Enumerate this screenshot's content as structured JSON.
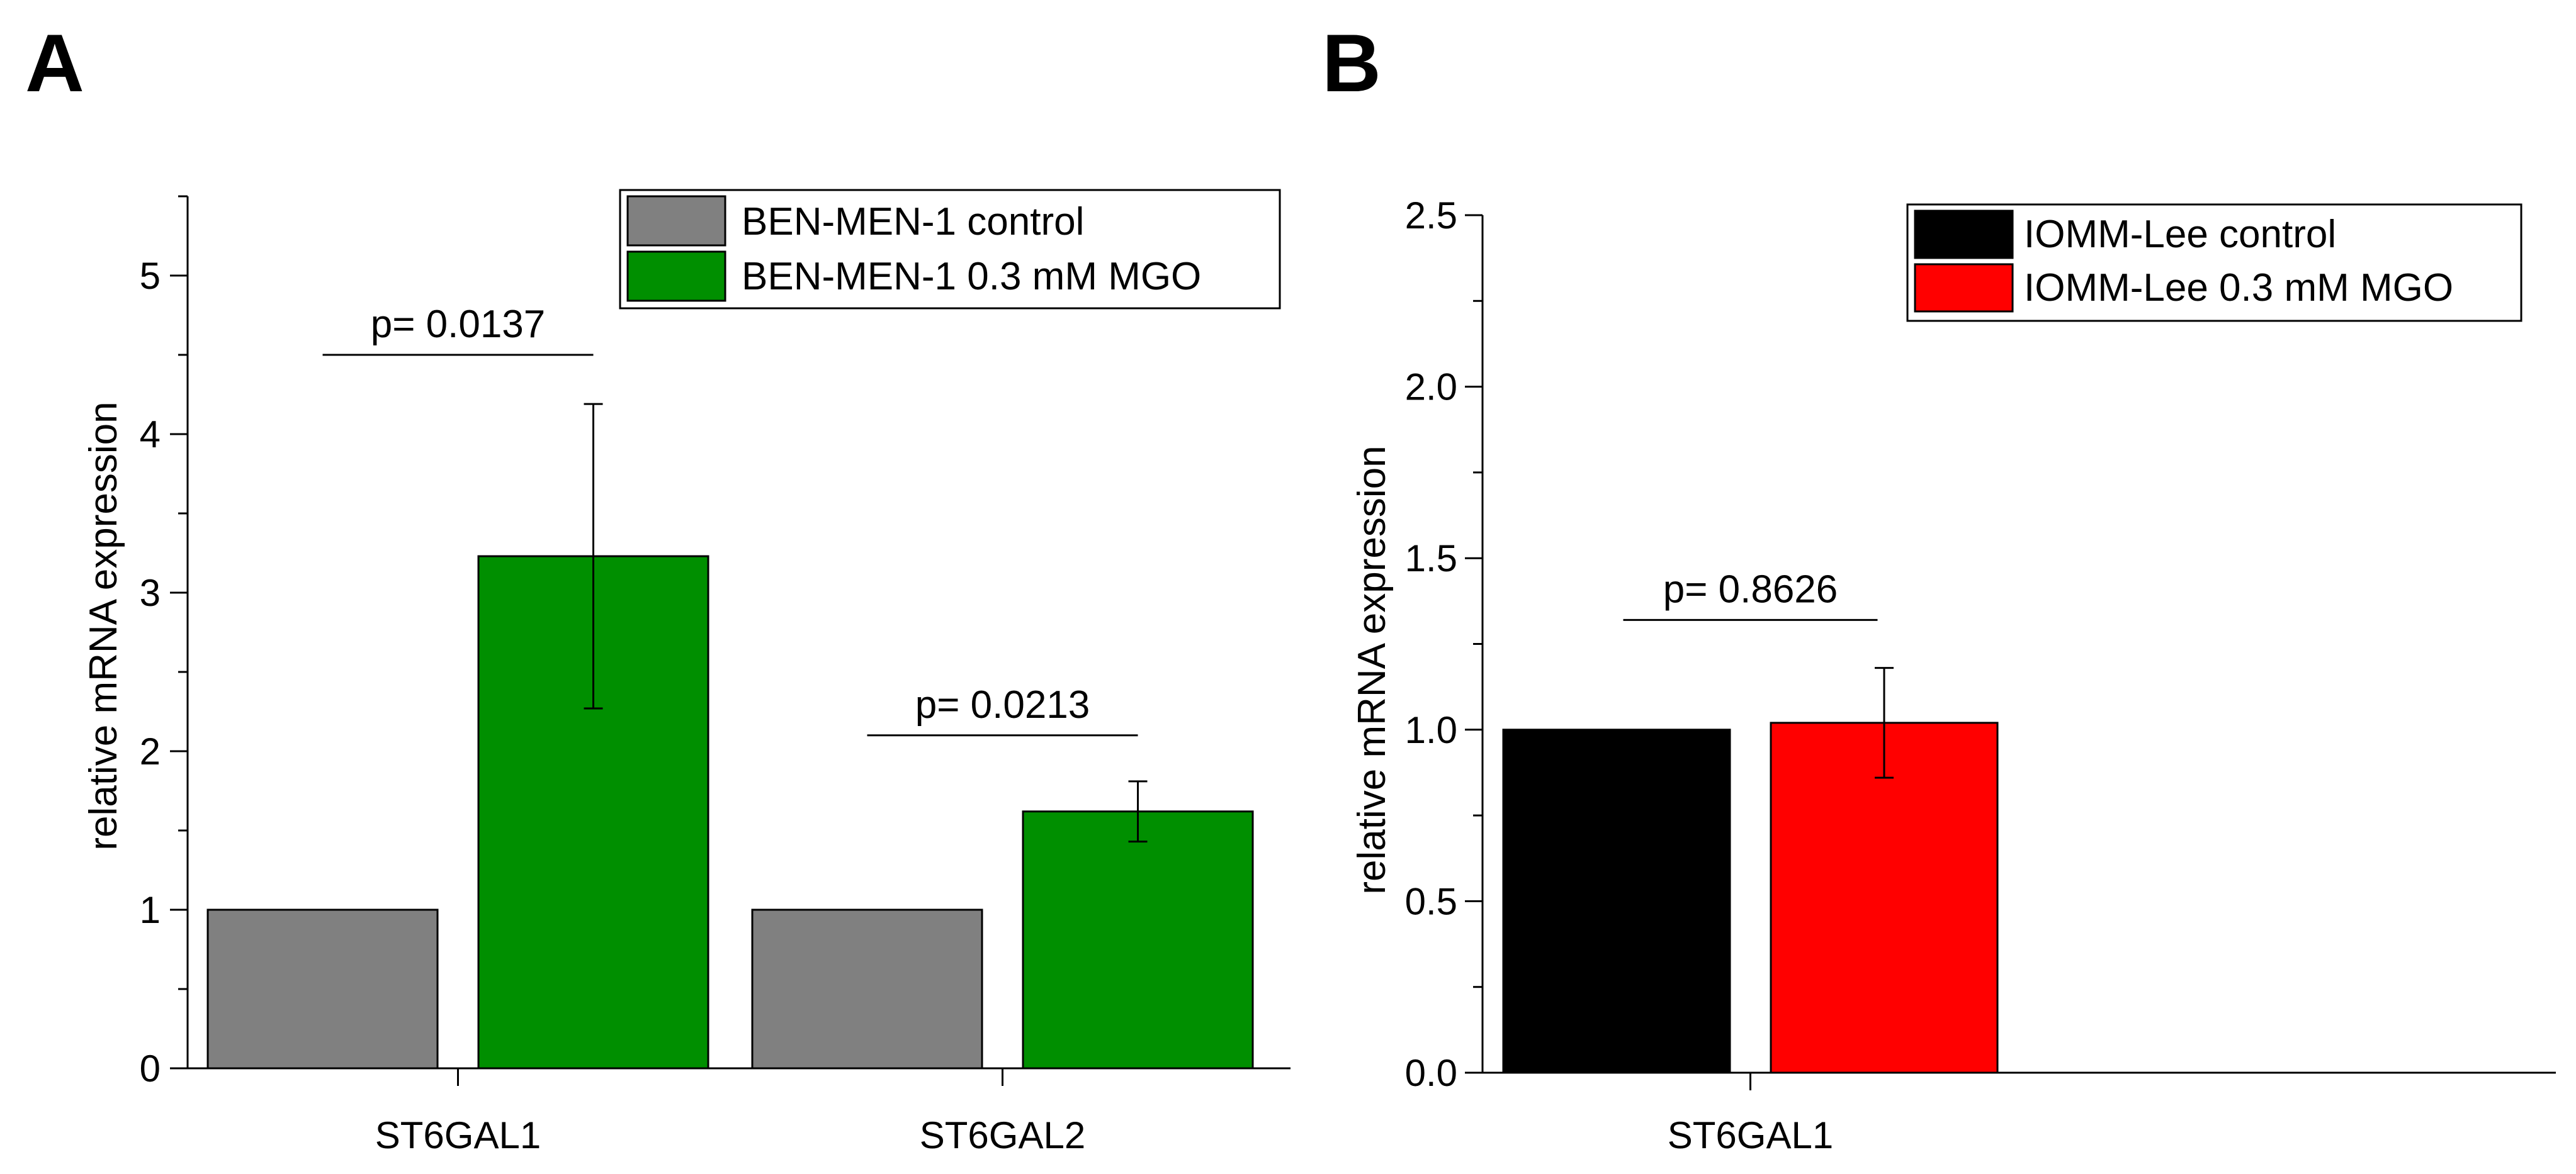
{
  "panels": [
    {
      "label": "A",
      "ylabel": "relative mRNA expression",
      "legend": [
        {
          "name": "BEN-MEN-1 control",
          "color": "#808080"
        },
        {
          "name": "BEN-MEN-1 0.3 mM MGO",
          "color": "#008f00"
        }
      ]
    },
    {
      "label": "B",
      "ylabel": "relative mRNA expression",
      "legend": [
        {
          "name": "IOMM-Lee control",
          "color": "#000000"
        },
        {
          "name": "IOMM-Lee 0.3 mM MGO",
          "color": "#ff0000"
        }
      ]
    }
  ],
  "chart_data": [
    {
      "type": "bar",
      "panel": "A",
      "title": "",
      "xlabel": "",
      "ylabel": "relative mRNA expression",
      "categories": [
        "ST6GAL1",
        "ST6GAL2"
      ],
      "series": [
        {
          "name": "BEN-MEN-1 control",
          "values": [
            1.0,
            1.0
          ],
          "errors": [
            0,
            0
          ],
          "color": "#808080"
        },
        {
          "name": "BEN-MEN-1 0.3 mM MGO",
          "values": [
            3.23,
            1.62
          ],
          "errors": [
            0.96,
            0.19
          ],
          "color": "#008f00"
        }
      ],
      "ylim": [
        0,
        5.5
      ],
      "yticks": [
        "0",
        "1",
        "2",
        "3",
        "4",
        "5"
      ],
      "annotations": [
        {
          "text": "p= 0.0137",
          "category": "ST6GAL1",
          "y": 4.5
        },
        {
          "text": "p= 0.0213",
          "category": "ST6GAL2",
          "y": 2.1
        }
      ],
      "legend_position": "top-right",
      "grid": false
    },
    {
      "type": "bar",
      "panel": "B",
      "title": "",
      "xlabel": "",
      "ylabel": "relative mRNA expression",
      "categories": [
        "ST6GAL1"
      ],
      "series": [
        {
          "name": "IOMM-Lee control",
          "values": [
            1.0
          ],
          "errors": [
            0
          ],
          "color": "#000000"
        },
        {
          "name": "IOMM-Lee 0.3 mM MGO",
          "values": [
            1.02
          ],
          "errors": [
            0.16
          ],
          "color": "#ff0000"
        }
      ],
      "ylim": [
        0,
        2.5
      ],
      "yticks": [
        "0.0",
        "0.5",
        "1.0",
        "1.5",
        "2.0",
        "2.5"
      ],
      "annotations": [
        {
          "text": "p= 0.8626",
          "category": "ST6GAL1",
          "y": 1.32
        }
      ],
      "legend_position": "top-right",
      "grid": false
    }
  ]
}
